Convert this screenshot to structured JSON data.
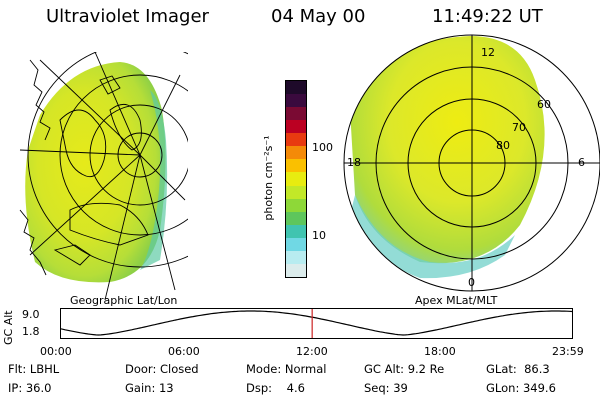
{
  "header": {
    "instrument": "Ultraviolet Imager",
    "date": "04 May 00",
    "time": "11:49:22 UT"
  },
  "geo_panel": {
    "label": "Geographic Lat/Lon"
  },
  "apex_panel": {
    "label": "Apex MLat/MLT",
    "lat_rings": [
      "80",
      "70",
      "60"
    ],
    "mlt_labels": {
      "top": "12",
      "left": "18",
      "right": "6",
      "bottom": "0"
    }
  },
  "colorbar": {
    "unit": "photon cm⁻²s⁻¹",
    "ticks": [
      "100",
      "10"
    ],
    "colors": [
      "#1e0a2a",
      "#3a0a3e",
      "#7a0a33",
      "#bb0022",
      "#e83a10",
      "#f48a08",
      "#fac000",
      "#e8ec10",
      "#c2e828",
      "#8ed838",
      "#5ec65c",
      "#40c4b0",
      "#70d8e4",
      "#b8ecf0",
      "#dcecec"
    ]
  },
  "timeline": {
    "ylabel": "GC Alt",
    "y_max": "9.0",
    "y_min": "1.8",
    "ticks": [
      "00:00",
      "06:00",
      "12:00",
      "18:00",
      "23:59"
    ],
    "current_hour": 11.82
  },
  "status": {
    "row1": [
      {
        "label": "Flt:",
        "value": "LBHL"
      },
      {
        "label": "Door:",
        "value": "Closed"
      },
      {
        "label": "Mode:",
        "value": "Normal"
      },
      {
        "label": "GC Alt:",
        "value": "9.2 Re"
      },
      {
        "label": "GLat:",
        "value": "86.3"
      }
    ],
    "row2": [
      {
        "label": "IP:",
        "value": "36.0"
      },
      {
        "label": "Gain:",
        "value": "13"
      },
      {
        "label": "Dsp:",
        "value": "4.6"
      },
      {
        "label": "Seq:",
        "value": "39"
      },
      {
        "label": "GLon:",
        "value": "349.6"
      }
    ]
  }
}
